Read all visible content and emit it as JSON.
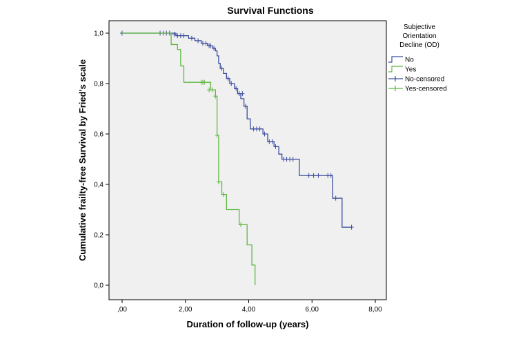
{
  "chart_data": {
    "type": "line",
    "title": "Survival Functions",
    "xlabel": "Duration of follow-up (years)",
    "ylabel": "Cumulative frailty-free Survival by Fried's scale",
    "xlim": [
      0,
      8
    ],
    "ylim": [
      0,
      1
    ],
    "x_ticks": [
      ",00",
      "2,00",
      "4,00",
      "6,00",
      "8,00"
    ],
    "x_tick_values": [
      0,
      2,
      4,
      6,
      8
    ],
    "y_ticks": [
      "0,0",
      "0,2",
      "0,4",
      "0,6",
      "0,8",
      "1,0"
    ],
    "y_tick_values": [
      0,
      0.2,
      0.4,
      0.6,
      0.8,
      1.0
    ],
    "plot_background": "#f0f0f0",
    "grid": false,
    "legend": {
      "title_lines": [
        "Subjective",
        "Orientation",
        "Decline (OD)"
      ],
      "placement": "right",
      "entries": [
        {
          "label": "No",
          "color": "#3b4d9e",
          "kind": "line"
        },
        {
          "label": "Yes",
          "color": "#5fb643",
          "kind": "line"
        },
        {
          "label": "No-censored",
          "color": "#3b4d9e",
          "kind": "censor"
        },
        {
          "label": "Yes-censored",
          "color": "#5fb643",
          "kind": "censor"
        }
      ]
    },
    "series": [
      {
        "name": "No",
        "color": "#3b4d9e",
        "steps": [
          [
            0,
            1.0
          ],
          [
            1.7,
            0.99
          ],
          [
            2.1,
            0.98
          ],
          [
            2.3,
            0.97
          ],
          [
            2.5,
            0.96
          ],
          [
            2.7,
            0.95
          ],
          [
            2.85,
            0.94
          ],
          [
            2.95,
            0.93
          ],
          [
            3.0,
            0.91
          ],
          [
            3.05,
            0.88
          ],
          [
            3.1,
            0.86
          ],
          [
            3.2,
            0.84
          ],
          [
            3.3,
            0.82
          ],
          [
            3.4,
            0.8
          ],
          [
            3.55,
            0.78
          ],
          [
            3.65,
            0.76
          ],
          [
            3.75,
            0.74
          ],
          [
            3.85,
            0.71
          ],
          [
            3.95,
            0.66
          ],
          [
            4.05,
            0.62
          ],
          [
            4.45,
            0.6
          ],
          [
            4.6,
            0.57
          ],
          [
            4.8,
            0.55
          ],
          [
            4.95,
            0.52
          ],
          [
            5.05,
            0.5
          ],
          [
            5.6,
            0.435
          ],
          [
            6.65,
            0.345
          ],
          [
            6.95,
            0.23
          ]
        ],
        "end_x": 7.25,
        "censored": [
          [
            0.0,
            1.0
          ],
          [
            1.2,
            1.0
          ],
          [
            1.3,
            1.0
          ],
          [
            1.4,
            1.0
          ],
          [
            1.5,
            1.0
          ],
          [
            1.65,
            0.995
          ],
          [
            1.75,
            0.99
          ],
          [
            1.85,
            0.99
          ],
          [
            1.95,
            0.99
          ],
          [
            2.2,
            0.98
          ],
          [
            2.4,
            0.97
          ],
          [
            2.55,
            0.96
          ],
          [
            2.65,
            0.96
          ],
          [
            2.75,
            0.95
          ],
          [
            2.8,
            0.95
          ],
          [
            2.9,
            0.94
          ],
          [
            3.15,
            0.86
          ],
          [
            3.35,
            0.82
          ],
          [
            3.45,
            0.8
          ],
          [
            3.6,
            0.78
          ],
          [
            3.7,
            0.76
          ],
          [
            3.8,
            0.76
          ],
          [
            3.9,
            0.71
          ],
          [
            4.15,
            0.62
          ],
          [
            4.25,
            0.62
          ],
          [
            4.35,
            0.62
          ],
          [
            4.5,
            0.6
          ],
          [
            4.65,
            0.57
          ],
          [
            4.75,
            0.57
          ],
          [
            4.85,
            0.55
          ],
          [
            5.1,
            0.5
          ],
          [
            5.2,
            0.5
          ],
          [
            5.3,
            0.5
          ],
          [
            5.4,
            0.5
          ],
          [
            5.9,
            0.435
          ],
          [
            6.05,
            0.435
          ],
          [
            6.2,
            0.435
          ],
          [
            6.5,
            0.435
          ],
          [
            6.6,
            0.435
          ],
          [
            6.75,
            0.345
          ],
          [
            7.25,
            0.23
          ]
        ]
      },
      {
        "name": "Yes",
        "color": "#5fb643",
        "steps": [
          [
            0,
            1.0
          ],
          [
            1.55,
            0.955
          ],
          [
            1.75,
            0.935
          ],
          [
            1.85,
            0.87
          ],
          [
            1.95,
            0.805
          ],
          [
            2.8,
            0.775
          ],
          [
            2.95,
            0.75
          ],
          [
            3.0,
            0.595
          ],
          [
            3.05,
            0.41
          ],
          [
            3.15,
            0.36
          ],
          [
            3.3,
            0.3
          ],
          [
            3.7,
            0.24
          ],
          [
            3.95,
            0.16
          ],
          [
            4.1,
            0.08
          ],
          [
            4.2,
            0.0
          ]
        ],
        "end_x": 4.2,
        "censored": [
          [
            2.5,
            0.805
          ],
          [
            2.55,
            0.805
          ],
          [
            2.6,
            0.805
          ],
          [
            2.75,
            0.775
          ],
          [
            2.85,
            0.775
          ],
          [
            2.95,
            0.75
          ],
          [
            3.0,
            0.595
          ],
          [
            3.05,
            0.41
          ],
          [
            3.2,
            0.36
          ],
          [
            3.75,
            0.24
          ]
        ]
      }
    ]
  }
}
